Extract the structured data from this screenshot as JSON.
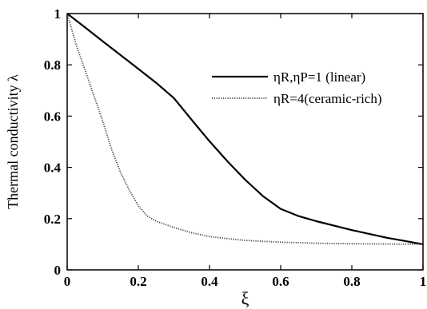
{
  "chart_data": {
    "type": "line",
    "title": "",
    "xlabel": "ξ",
    "ylabel": "Thermal conductivity λ",
    "xlim": [
      0,
      1
    ],
    "ylim": [
      0,
      1
    ],
    "x_ticks": [
      "0",
      "0.2",
      "0.4",
      "0.6",
      "0.8",
      "1"
    ],
    "y_ticks": [
      "0",
      "0.2",
      "0.4",
      "0.6",
      "0.8",
      "1"
    ],
    "grid": false,
    "legend_position": "upper-right",
    "series": [
      {
        "name": "ηR,ηP=1      (linear)",
        "style": "solid",
        "color": "#000000",
        "points": [
          [
            0,
            1
          ],
          [
            0.05,
            0.946
          ],
          [
            0.1,
            0.892
          ],
          [
            0.15,
            0.838
          ],
          [
            0.2,
            0.784
          ],
          [
            0.25,
            0.73
          ],
          [
            0.3,
            0.67
          ],
          [
            0.35,
            0.585
          ],
          [
            0.4,
            0.502
          ],
          [
            0.45,
            0.424
          ],
          [
            0.5,
            0.352
          ],
          [
            0.55,
            0.288
          ],
          [
            0.6,
            0.238
          ],
          [
            0.65,
            0.21
          ],
          [
            0.7,
            0.19
          ],
          [
            0.8,
            0.155
          ],
          [
            0.9,
            0.125
          ],
          [
            1,
            0.1
          ]
        ]
      },
      {
        "name": "ηR=4(ceramic-rich)",
        "style": "dotted",
        "color": "#444444",
        "points": [
          [
            0,
            1
          ],
          [
            0.025,
            0.88
          ],
          [
            0.05,
            0.78
          ],
          [
            0.075,
            0.68
          ],
          [
            0.1,
            0.58
          ],
          [
            0.125,
            0.47
          ],
          [
            0.15,
            0.38
          ],
          [
            0.175,
            0.31
          ],
          [
            0.2,
            0.25
          ],
          [
            0.225,
            0.21
          ],
          [
            0.25,
            0.19
          ],
          [
            0.3,
            0.165
          ],
          [
            0.35,
            0.145
          ],
          [
            0.4,
            0.13
          ],
          [
            0.45,
            0.122
          ],
          [
            0.5,
            0.115
          ],
          [
            0.6,
            0.108
          ],
          [
            0.7,
            0.104
          ],
          [
            0.8,
            0.102
          ],
          [
            0.9,
            0.101
          ],
          [
            1,
            0.1
          ]
        ]
      }
    ]
  }
}
